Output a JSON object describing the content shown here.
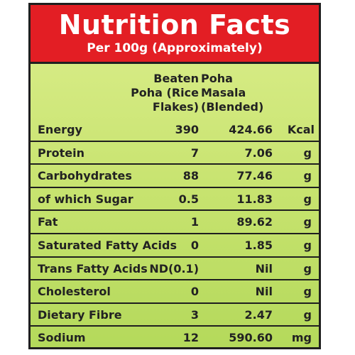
{
  "header": {
    "title": "Nutrition Facts",
    "subtitle": "Per 100g (Approximately)"
  },
  "columns": {
    "col1": "Beaten\nPoha (Rice\nFlakes)",
    "col2": "Poha\nMasala\n(Blended)"
  },
  "rows": [
    {
      "name": "Energy",
      "v1": "390",
      "v2": "424.66",
      "unit": "Kcal"
    },
    {
      "name": "Protein",
      "v1": "7",
      "v2": "7.06",
      "unit": "g"
    },
    {
      "name": "Carbohydrates",
      "v1": "88",
      "v2": "77.46",
      "unit": "g"
    },
    {
      "name": "of which Sugar",
      "v1": "0.5",
      "v2": "11.83",
      "unit": "g"
    },
    {
      "name": "Fat",
      "v1": "1",
      "v2": "89.62",
      "unit": "g"
    },
    {
      "name": "Saturated Fatty Acids",
      "v1": "0",
      "v2": "1.85",
      "unit": "g"
    },
    {
      "name": "Trans Fatty Acids",
      "v1": "ND(0.1)",
      "v2": "Nil",
      "unit": "g"
    },
    {
      "name": "Cholesterol",
      "v1": "0",
      "v2": "Nil",
      "unit": "g"
    },
    {
      "name": "Dietary Fibre",
      "v1": "3",
      "v2": "2.47",
      "unit": "g"
    },
    {
      "name": "Sodium",
      "v1": "12",
      "v2": "590.60",
      "unit": "mg"
    }
  ],
  "colors": {
    "header_red": "#e31e24",
    "panel_green": "#c7e36f",
    "border": "#1f1f1f"
  }
}
